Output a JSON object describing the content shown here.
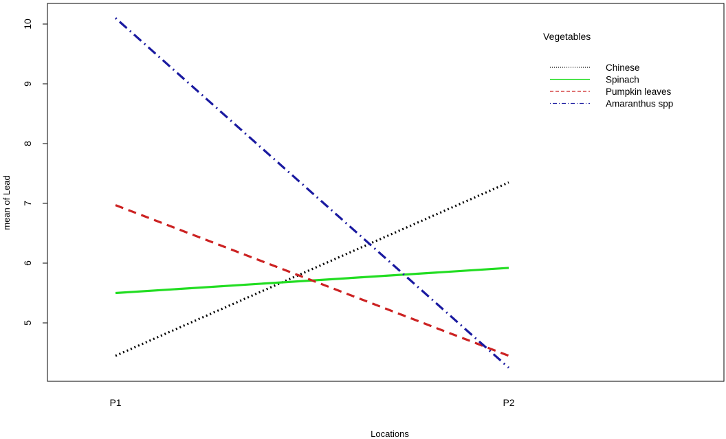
{
  "chart_data": {
    "type": "line",
    "x": [
      "P1",
      "P2"
    ],
    "xlabel": "Locations",
    "ylabel": "mean of Lead",
    "ylim": [
      4.0,
      10.35
    ],
    "yticks": [
      5,
      6,
      7,
      8,
      9,
      10
    ],
    "grid": false,
    "legend_title": "Vegetables",
    "legend_position": "top-right",
    "series": [
      {
        "name": "Chinese",
        "values": [
          4.45,
          7.35
        ],
        "color": "#000000",
        "dash": "dotted"
      },
      {
        "name": "Spinach",
        "values": [
          5.5,
          5.92
        ],
        "color": "#22dd22",
        "dash": "solid"
      },
      {
        "name": "Pumpkin leaves",
        "values": [
          6.97,
          4.45
        ],
        "color": "#cc2222",
        "dash": "dashed"
      },
      {
        "name": "Amaranthus spp",
        "values": [
          10.1,
          4.25
        ],
        "color": "#1a1aa0",
        "dash": "dotdash"
      }
    ]
  }
}
